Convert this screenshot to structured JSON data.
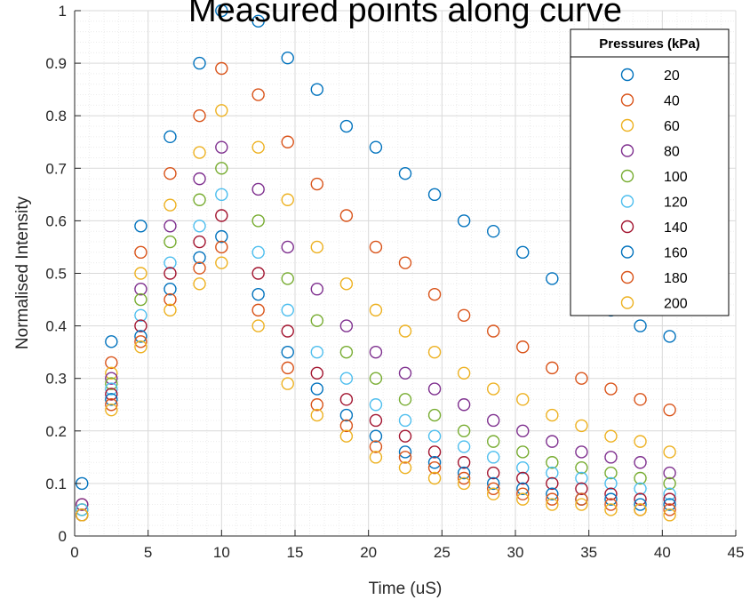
{
  "chart_data": {
    "type": "scatter",
    "title": "Measured points along curve",
    "xlabel": "Time (uS)",
    "ylabel": "Normalised Intensity",
    "xlim": [
      0,
      45
    ],
    "ylim": [
      0,
      1
    ],
    "xticks": [
      0,
      5,
      10,
      15,
      20,
      25,
      30,
      35,
      40,
      45
    ],
    "yticks": [
      0,
      0.1,
      0.2,
      0.3,
      0.4,
      0.5,
      0.6,
      0.7,
      0.8,
      0.9,
      1
    ],
    "grid": true,
    "minor_grid": true,
    "legend_title": "Pressures (kPa)",
    "legend_position": "top-right",
    "marker": "open-circle",
    "x": [
      0.5,
      2.5,
      4.5,
      6.5,
      8.5,
      10,
      12.5,
      14.5,
      16.5,
      18.5,
      20.5,
      22.5,
      24.5,
      26.5,
      28.5,
      30.5,
      32.5,
      34.5,
      36.5,
      38.5,
      40.5
    ],
    "series": [
      {
        "name": "20",
        "color": "#0072BD",
        "values": [
          0.1,
          0.37,
          0.59,
          0.76,
          0.9,
          1.0,
          0.98,
          0.91,
          0.85,
          0.78,
          0.74,
          0.69,
          0.65,
          0.6,
          0.58,
          0.54,
          0.49,
          0.46,
          0.43,
          0.4,
          0.38
        ]
      },
      {
        "name": "40",
        "color": "#D95319",
        "values": [
          0.06,
          0.33,
          0.54,
          0.69,
          0.8,
          0.89,
          0.84,
          0.75,
          0.67,
          0.61,
          0.55,
          0.52,
          0.46,
          0.42,
          0.39,
          0.36,
          0.32,
          0.3,
          0.28,
          0.26,
          0.24
        ]
      },
      {
        "name": "60",
        "color": "#EDB120",
        "values": [
          0.05,
          0.31,
          0.5,
          0.63,
          0.73,
          0.81,
          0.74,
          0.64,
          0.55,
          0.48,
          0.43,
          0.39,
          0.35,
          0.31,
          0.28,
          0.26,
          0.23,
          0.21,
          0.19,
          0.18,
          0.16
        ]
      },
      {
        "name": "80",
        "color": "#7E2F8E",
        "values": [
          0.06,
          0.3,
          0.47,
          0.59,
          0.68,
          0.74,
          0.66,
          0.55,
          0.47,
          0.4,
          0.35,
          0.31,
          0.28,
          0.25,
          0.22,
          0.2,
          0.18,
          0.16,
          0.15,
          0.14,
          0.12
        ]
      },
      {
        "name": "100",
        "color": "#77AC30",
        "values": [
          0.05,
          0.29,
          0.45,
          0.56,
          0.64,
          0.7,
          0.6,
          0.49,
          0.41,
          0.35,
          0.3,
          0.26,
          0.23,
          0.2,
          0.18,
          0.16,
          0.14,
          0.13,
          0.12,
          0.11,
          0.1
        ]
      },
      {
        "name": "120",
        "color": "#4DBEEE",
        "values": [
          0.05,
          0.28,
          0.42,
          0.52,
          0.59,
          0.65,
          0.54,
          0.43,
          0.35,
          0.3,
          0.25,
          0.22,
          0.19,
          0.17,
          0.15,
          0.13,
          0.12,
          0.11,
          0.1,
          0.09,
          0.08
        ]
      },
      {
        "name": "140",
        "color": "#A2142F",
        "values": [
          0.04,
          0.27,
          0.4,
          0.5,
          0.56,
          0.61,
          0.5,
          0.39,
          0.31,
          0.26,
          0.22,
          0.19,
          0.16,
          0.14,
          0.12,
          0.11,
          0.1,
          0.09,
          0.08,
          0.07,
          0.07
        ]
      },
      {
        "name": "160",
        "color": "#0072BD",
        "values": [
          0.04,
          0.26,
          0.38,
          0.47,
          0.53,
          0.57,
          0.46,
          0.35,
          0.28,
          0.23,
          0.19,
          0.16,
          0.14,
          0.12,
          0.1,
          0.09,
          0.08,
          0.07,
          0.07,
          0.06,
          0.06
        ]
      },
      {
        "name": "180",
        "color": "#D95319",
        "values": [
          0.04,
          0.25,
          0.37,
          0.45,
          0.51,
          0.55,
          0.43,
          0.32,
          0.25,
          0.21,
          0.17,
          0.15,
          0.13,
          0.11,
          0.09,
          0.08,
          0.07,
          0.07,
          0.06,
          0.05,
          0.05
        ]
      },
      {
        "name": "200",
        "color": "#EDB120",
        "values": [
          0.04,
          0.24,
          0.36,
          0.43,
          0.48,
          0.52,
          0.4,
          0.29,
          0.23,
          0.19,
          0.15,
          0.13,
          0.11,
          0.1,
          0.08,
          0.07,
          0.06,
          0.06,
          0.05,
          0.05,
          0.04
        ]
      }
    ]
  }
}
